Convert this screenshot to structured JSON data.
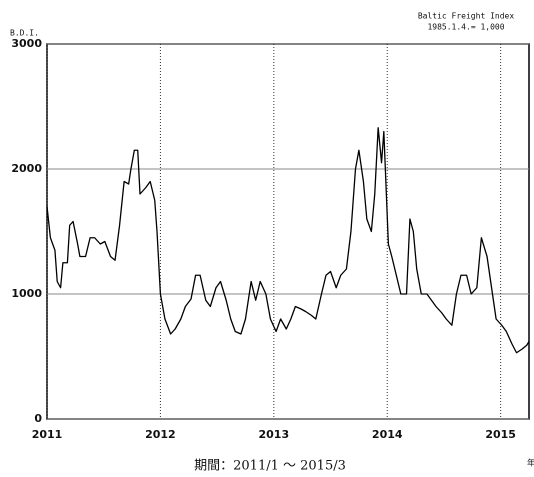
{
  "chart_data": {
    "type": "line",
    "title": "B.D.I.",
    "subtitle": "Baltic Freight Index",
    "note": "1985.1.4.= 1,000",
    "caption": "期間：2011/1 ～ 2015/3",
    "x_unit": "年",
    "color": "#000000",
    "grid": true,
    "xlim": [
      2011,
      2015.25
    ],
    "xticks": [
      2011,
      2012,
      2013,
      2014,
      2015
    ],
    "ylim": [
      0,
      3000
    ],
    "yticks": [
      0,
      1000,
      2000,
      3000
    ],
    "x": [
      2011.0,
      2011.03,
      2011.07,
      2011.09,
      2011.12,
      2011.14,
      2011.18,
      2011.2,
      2011.23,
      2011.27,
      2011.29,
      2011.34,
      2011.38,
      2011.42,
      2011.47,
      2011.51,
      2011.56,
      2011.6,
      2011.64,
      2011.68,
      2011.72,
      2011.74,
      2011.77,
      2011.8,
      2011.82,
      2011.87,
      2011.91,
      2011.95,
      2011.97,
      2012.0,
      2012.04,
      2012.09,
      2012.13,
      2012.18,
      2012.22,
      2012.27,
      2012.31,
      2012.35,
      2012.4,
      2012.44,
      2012.49,
      2012.53,
      2012.58,
      2012.62,
      2012.66,
      2012.71,
      2012.75,
      2012.8,
      2012.84,
      2012.88,
      2012.93,
      2012.97,
      2013.02,
      2013.06,
      2013.11,
      2013.15,
      2013.19,
      2013.24,
      2013.28,
      2013.33,
      2013.37,
      2013.42,
      2013.46,
      2013.5,
      2013.55,
      2013.59,
      2013.64,
      2013.68,
      2013.72,
      2013.75,
      2013.79,
      2013.82,
      2013.86,
      2013.89,
      2013.92,
      2013.95,
      2013.97,
      2014.01,
      2014.04,
      2014.08,
      2014.12,
      2014.17,
      2014.2,
      2014.23,
      2014.26,
      2014.3,
      2014.35,
      2014.39,
      2014.43,
      2014.48,
      2014.52,
      2014.57,
      2014.61,
      2014.65,
      2014.7,
      2014.74,
      2014.79,
      2014.83,
      2014.88,
      2014.92,
      2014.96,
      2015.01,
      2015.05,
      2015.1,
      2015.14,
      2015.19,
      2015.23,
      2015.25
    ],
    "values": [
      1700,
      1450,
      1350,
      1100,
      1050,
      1250,
      1250,
      1550,
      1580,
      1400,
      1300,
      1300,
      1450,
      1450,
      1400,
      1420,
      1300,
      1270,
      1550,
      1900,
      1880,
      2000,
      2150,
      2150,
      1800,
      1850,
      1900,
      1750,
      1500,
      1000,
      800,
      680,
      720,
      800,
      900,
      960,
      1150,
      1150,
      950,
      900,
      1050,
      1100,
      950,
      800,
      700,
      680,
      800,
      1100,
      950,
      1100,
      1000,
      800,
      700,
      800,
      720,
      800,
      900,
      880,
      860,
      830,
      800,
      1000,
      1150,
      1180,
      1050,
      1150,
      1200,
      1500,
      2000,
      2150,
      1900,
      1600,
      1500,
      1800,
      2330,
      2050,
      2300,
      1400,
      1300,
      1150,
      1000,
      1000,
      1600,
      1500,
      1200,
      1000,
      1000,
      950,
      900,
      850,
      800,
      750,
      1000,
      1150,
      1150,
      1000,
      1050,
      1450,
      1300,
      1050,
      800,
      750,
      700,
      600,
      530,
      560,
      590,
      620
    ]
  }
}
